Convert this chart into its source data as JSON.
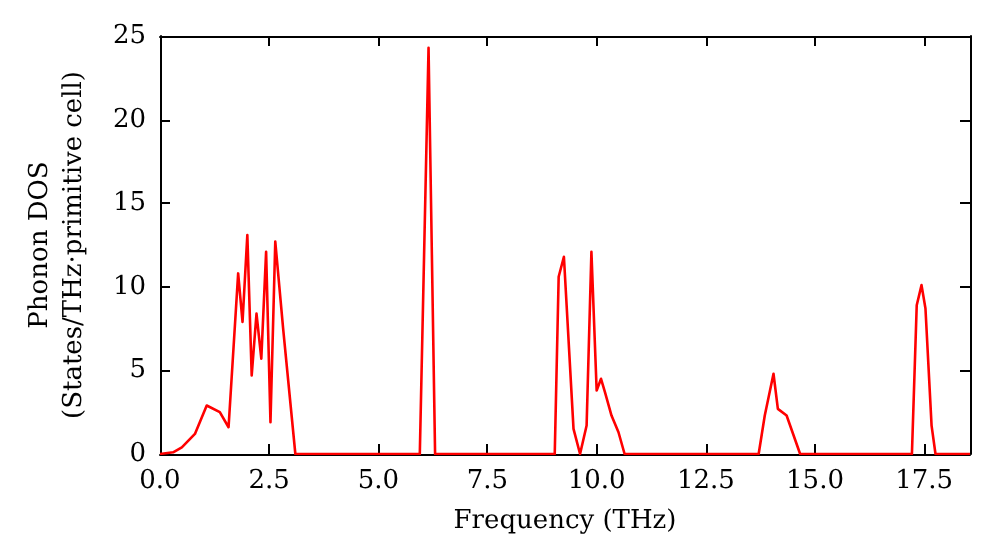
{
  "chart_data": {
    "type": "line",
    "xlabel": "Frequency (THz)",
    "ylabel": "Phonon DOS\n(States/THz·primitive cell)",
    "xlim": [
      0,
      18.55
    ],
    "ylim": [
      0,
      25
    ],
    "xticks": [
      {
        "value": 0,
        "label": "0.0"
      },
      {
        "value": 2.5,
        "label": "2.5"
      },
      {
        "value": 5,
        "label": "5.0"
      },
      {
        "value": 7.5,
        "label": "7.5"
      },
      {
        "value": 10,
        "label": "10.0"
      },
      {
        "value": 12.5,
        "label": "12.5"
      },
      {
        "value": 15,
        "label": "15.0"
      },
      {
        "value": 17.5,
        "label": "17.5"
      }
    ],
    "yticks": [
      0,
      5,
      10,
      15,
      20,
      25
    ],
    "grid": false,
    "marker": "none",
    "line_style": "solid",
    "series": [
      {
        "color": "#ff0000",
        "x": [
          0,
          0.3,
          0.5,
          0.8,
          1.07,
          1.37,
          1.57,
          1.79,
          1.89,
          2.0,
          2.1,
          2.21,
          2.32,
          2.43,
          2.53,
          2.64,
          2.82,
          3.1,
          5.95,
          6.15,
          6.3,
          9.04,
          9.13,
          9.25,
          9.47,
          9.62,
          9.77,
          9.88,
          10.0,
          10.1,
          10.19,
          10.34,
          10.5,
          10.64,
          13.71,
          13.85,
          14.05,
          14.15,
          14.35,
          14.66,
          17.22,
          17.33,
          17.44,
          17.53,
          17.67,
          17.76,
          18.55
        ],
        "values": [
          0,
          0.1,
          0.4,
          1.2,
          2.9,
          2.5,
          1.6,
          10.8,
          7.9,
          13.1,
          4.7,
          8.4,
          5.7,
          12.1,
          1.9,
          12.7,
          7.5,
          0,
          0,
          24.3,
          0,
          0,
          10.6,
          11.8,
          1.5,
          0,
          1.7,
          12.1,
          3.8,
          4.5,
          3.7,
          2.3,
          1.3,
          0,
          0,
          2.3,
          4.8,
          2.7,
          2.3,
          0,
          0,
          8.9,
          10.1,
          8.7,
          1.7,
          0,
          0
        ]
      }
    ]
  }
}
